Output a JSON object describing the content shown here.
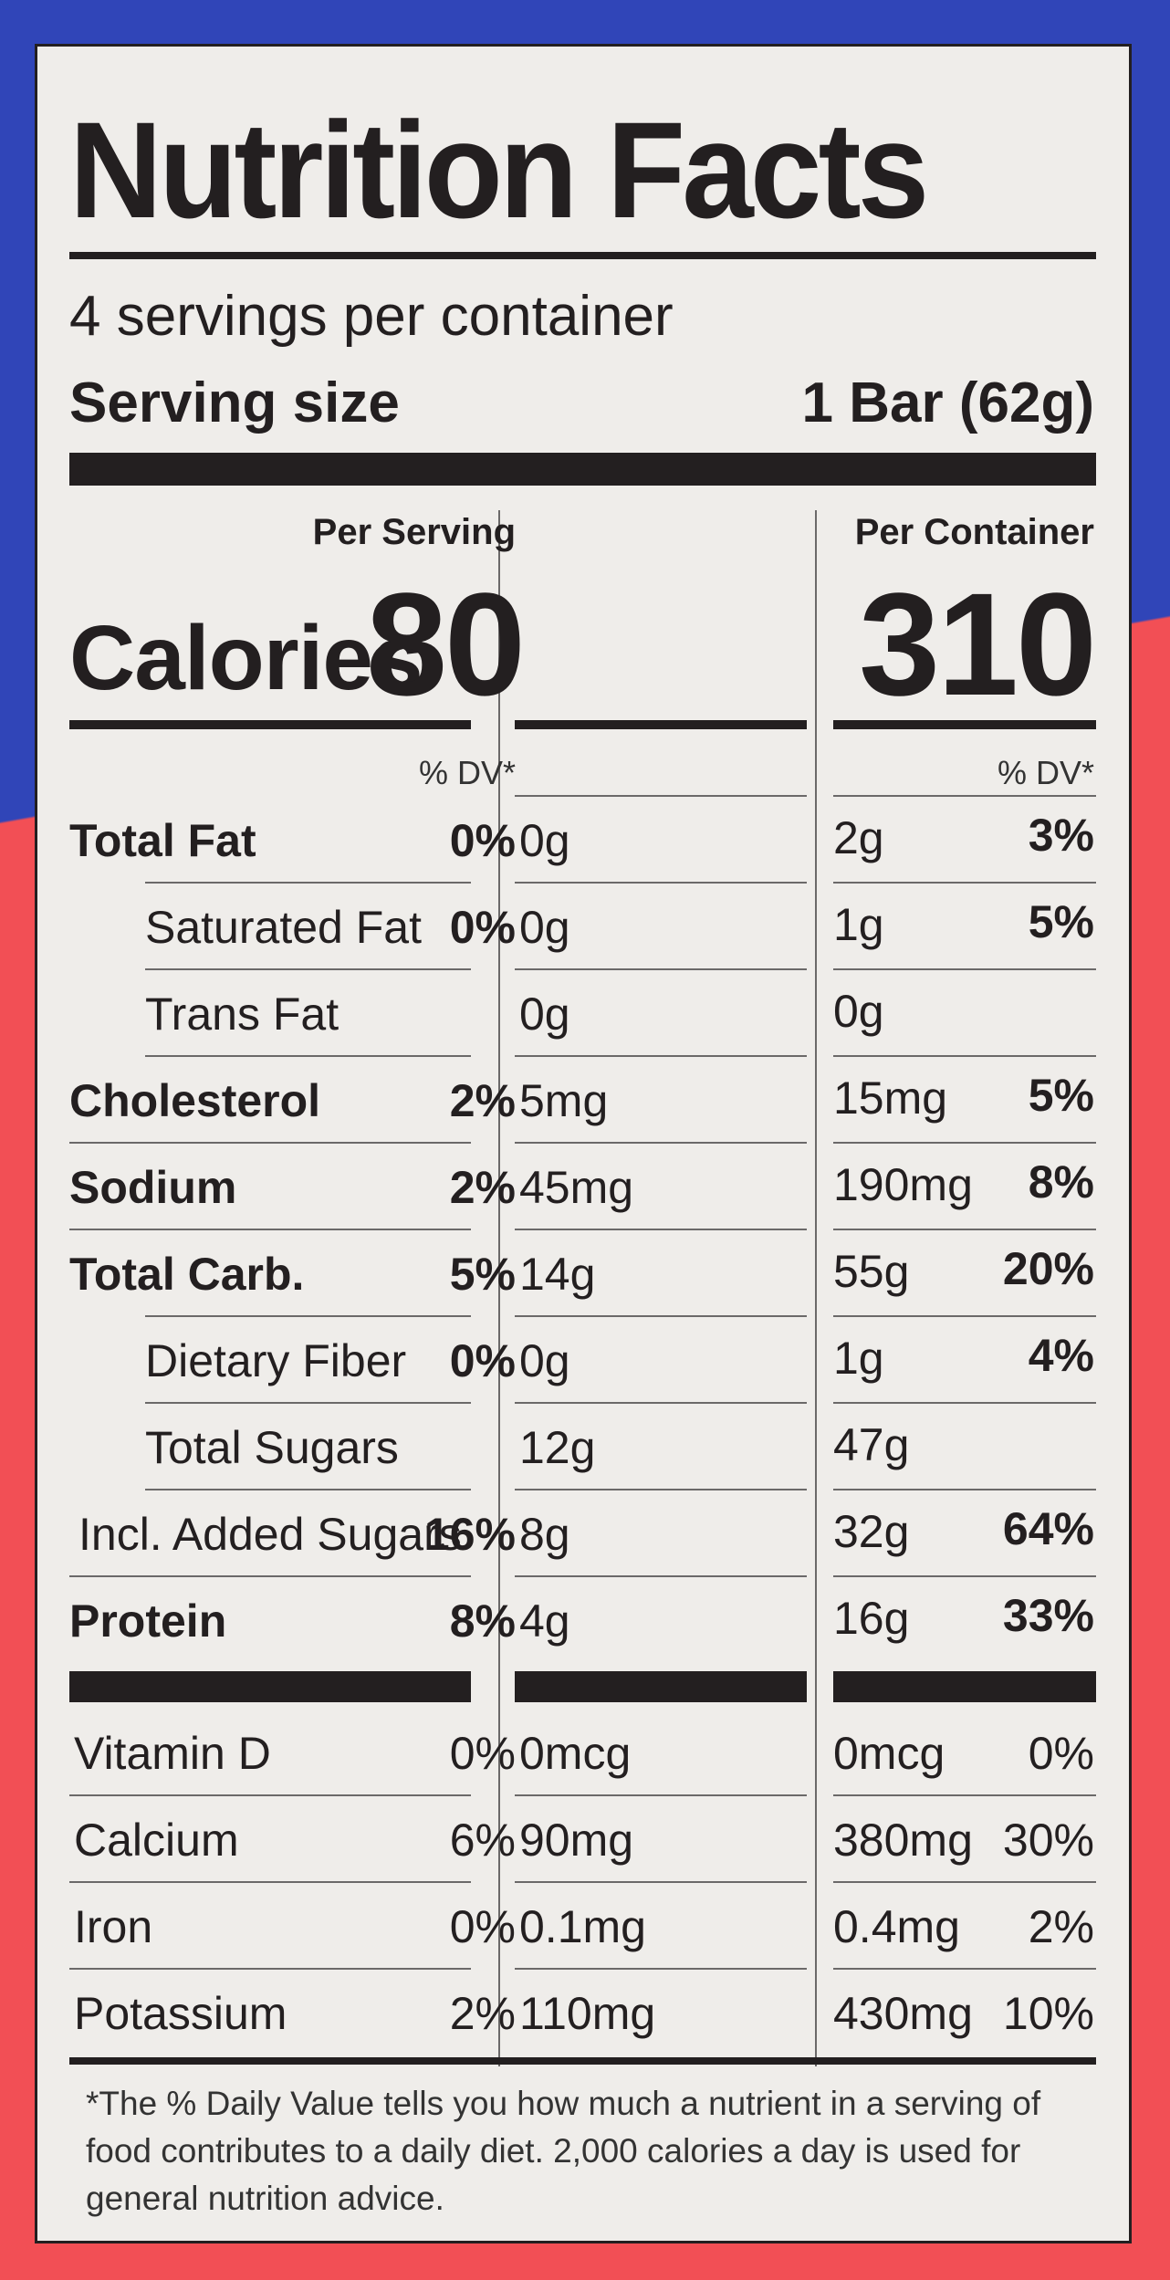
{
  "label": {
    "title": "Nutrition Facts",
    "servings_per_container": "4 servings per container",
    "serving_size_label": "Serving size",
    "serving_size_value": "1 Bar (62g)",
    "col_per_serving": "Per Serving",
    "col_per_container": "Per Container",
    "calories_label": "Calories",
    "calories_per_serving": "80",
    "calories_per_container": "310",
    "dv_header": "% DV*"
  },
  "nutrients": [
    {
      "name": "Total Fat",
      "bold": true,
      "indent": false,
      "s_amt": "0g",
      "s_pct": "0%",
      "c_amt": "2g",
      "c_pct": "3%"
    },
    {
      "name": "Saturated Fat",
      "bold": false,
      "indent": true,
      "s_amt": "0g",
      "s_pct": "0%",
      "c_amt": "1g",
      "c_pct": "5%"
    },
    {
      "name": "Trans Fat",
      "bold": false,
      "indent": true,
      "s_amt": "0g",
      "s_pct": "",
      "c_amt": "0g",
      "c_pct": ""
    },
    {
      "name": "Cholesterol",
      "bold": true,
      "indent": false,
      "s_amt": "5mg",
      "s_pct": "2%",
      "c_amt": "15mg",
      "c_pct": "5%"
    },
    {
      "name": "Sodium",
      "bold": true,
      "indent": false,
      "s_amt": "45mg",
      "s_pct": "2%",
      "c_amt": "190mg",
      "c_pct": "8%"
    },
    {
      "name": "Total Carb.",
      "bold": true,
      "indent": false,
      "s_amt": "14g",
      "s_pct": "5%",
      "c_amt": "55g",
      "c_pct": "20%"
    },
    {
      "name": "Dietary Fiber",
      "bold": false,
      "indent": true,
      "s_amt": "0g",
      "s_pct": "0%",
      "c_amt": "1g",
      "c_pct": "4%"
    },
    {
      "name": "Total Sugars",
      "bold": false,
      "indent": true,
      "s_amt": "12g",
      "s_pct": "",
      "c_amt": "47g",
      "c_pct": ""
    },
    {
      "name": "Incl. Added Sugars",
      "bold": false,
      "indent": false,
      "s_amt": "8g",
      "s_pct": "16%",
      "c_amt": "32g",
      "c_pct": "64%"
    },
    {
      "name": "Protein",
      "bold": true,
      "indent": false,
      "s_amt": "4g",
      "s_pct": "8%",
      "c_amt": "16g",
      "c_pct": "33%"
    }
  ],
  "vitamins": [
    {
      "name": "Vitamin D",
      "s_amt": "0mcg",
      "s_pct": "0%",
      "c_amt": "0mcg",
      "c_pct": "0%"
    },
    {
      "name": "Calcium",
      "s_amt": "90mg",
      "s_pct": "6%",
      "c_amt": "380mg",
      "c_pct": "30%"
    },
    {
      "name": "Iron",
      "s_amt": "0.1mg",
      "s_pct": "0%",
      "c_amt": "0.4mg",
      "c_pct": "2%"
    },
    {
      "name": "Potassium",
      "s_amt": "110mg",
      "s_pct": "2%",
      "c_amt": "430mg",
      "c_pct": "10%"
    }
  ],
  "footnote": "*The % Daily Value tells you how much a nutrient in a serving of food contributes to a daily diet. 2,000 calories a day is used for general nutrition advice.",
  "colors": {
    "background_blue": "#3045b8",
    "background_red": "#f24f55",
    "label_bg": "#efedea",
    "ink": "#231f20"
  }
}
